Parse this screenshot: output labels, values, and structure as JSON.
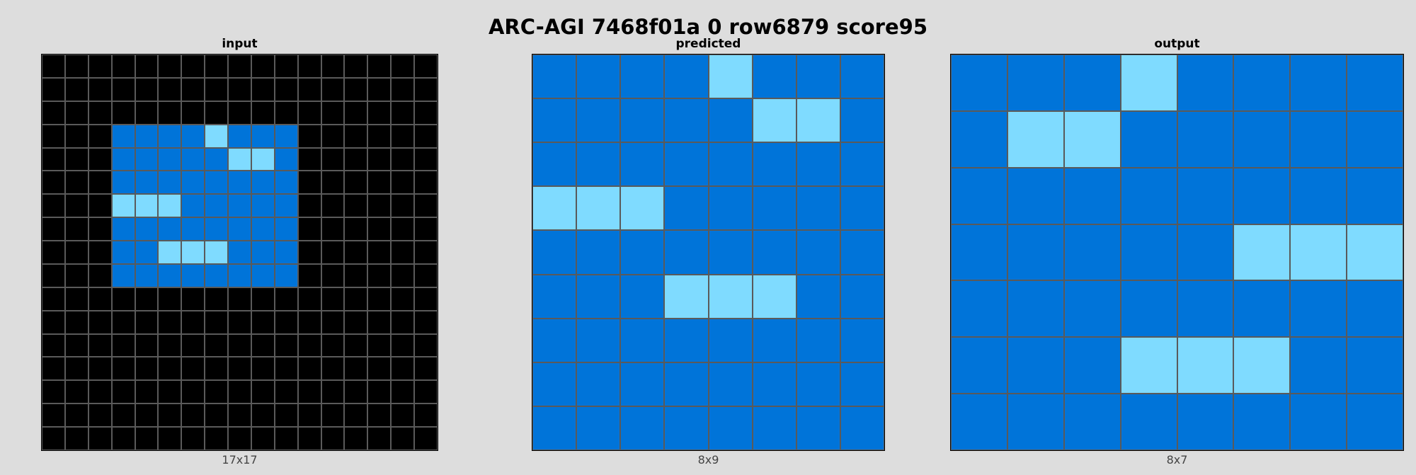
{
  "title": "ARC-AGI 7468f01a 0 row6879 score95",
  "colors": {
    "0": "#000000",
    "1": "#0074D9",
    "8": "#7FDBFF"
  },
  "panels": {
    "input": {
      "label": "input",
      "dims": "17x17",
      "rows": 17,
      "cols": 17,
      "grid": [
        [
          0,
          0,
          0,
          0,
          0,
          0,
          0,
          0,
          0,
          0,
          0,
          0,
          0,
          0,
          0,
          0,
          0
        ],
        [
          0,
          0,
          0,
          0,
          0,
          0,
          0,
          0,
          0,
          0,
          0,
          0,
          0,
          0,
          0,
          0,
          0
        ],
        [
          0,
          0,
          0,
          0,
          0,
          0,
          0,
          0,
          0,
          0,
          0,
          0,
          0,
          0,
          0,
          0,
          0
        ],
        [
          0,
          0,
          0,
          1,
          1,
          1,
          1,
          8,
          1,
          1,
          1,
          0,
          0,
          0,
          0,
          0,
          0
        ],
        [
          0,
          0,
          0,
          1,
          1,
          1,
          1,
          1,
          8,
          8,
          1,
          0,
          0,
          0,
          0,
          0,
          0
        ],
        [
          0,
          0,
          0,
          1,
          1,
          1,
          1,
          1,
          1,
          1,
          1,
          0,
          0,
          0,
          0,
          0,
          0
        ],
        [
          0,
          0,
          0,
          8,
          8,
          8,
          1,
          1,
          1,
          1,
          1,
          0,
          0,
          0,
          0,
          0,
          0
        ],
        [
          0,
          0,
          0,
          1,
          1,
          1,
          1,
          1,
          1,
          1,
          1,
          0,
          0,
          0,
          0,
          0,
          0
        ],
        [
          0,
          0,
          0,
          1,
          1,
          8,
          8,
          8,
          1,
          1,
          1,
          0,
          0,
          0,
          0,
          0,
          0
        ],
        [
          0,
          0,
          0,
          1,
          1,
          1,
          1,
          1,
          1,
          1,
          1,
          0,
          0,
          0,
          0,
          0,
          0
        ],
        [
          0,
          0,
          0,
          0,
          0,
          0,
          0,
          0,
          0,
          0,
          0,
          0,
          0,
          0,
          0,
          0,
          0
        ],
        [
          0,
          0,
          0,
          0,
          0,
          0,
          0,
          0,
          0,
          0,
          0,
          0,
          0,
          0,
          0,
          0,
          0
        ],
        [
          0,
          0,
          0,
          0,
          0,
          0,
          0,
          0,
          0,
          0,
          0,
          0,
          0,
          0,
          0,
          0,
          0
        ],
        [
          0,
          0,
          0,
          0,
          0,
          0,
          0,
          0,
          0,
          0,
          0,
          0,
          0,
          0,
          0,
          0,
          0
        ],
        [
          0,
          0,
          0,
          0,
          0,
          0,
          0,
          0,
          0,
          0,
          0,
          0,
          0,
          0,
          0,
          0,
          0
        ],
        [
          0,
          0,
          0,
          0,
          0,
          0,
          0,
          0,
          0,
          0,
          0,
          0,
          0,
          0,
          0,
          0,
          0
        ],
        [
          0,
          0,
          0,
          0,
          0,
          0,
          0,
          0,
          0,
          0,
          0,
          0,
          0,
          0,
          0,
          0,
          0
        ]
      ]
    },
    "predicted": {
      "label": "predicted",
      "dims": "8x9",
      "rows": 9,
      "cols": 8,
      "grid": [
        [
          1,
          1,
          1,
          1,
          8,
          1,
          1,
          1
        ],
        [
          1,
          1,
          1,
          1,
          1,
          8,
          8,
          1
        ],
        [
          1,
          1,
          1,
          1,
          1,
          1,
          1,
          1
        ],
        [
          8,
          8,
          8,
          1,
          1,
          1,
          1,
          1
        ],
        [
          1,
          1,
          1,
          1,
          1,
          1,
          1,
          1
        ],
        [
          1,
          1,
          1,
          8,
          8,
          8,
          1,
          1
        ],
        [
          1,
          1,
          1,
          1,
          1,
          1,
          1,
          1
        ],
        [
          1,
          1,
          1,
          1,
          1,
          1,
          1,
          1
        ],
        [
          1,
          1,
          1,
          1,
          1,
          1,
          1,
          1
        ]
      ]
    },
    "output": {
      "label": "output",
      "dims": "8x7",
      "rows": 7,
      "cols": 8,
      "grid": [
        [
          1,
          1,
          1,
          8,
          1,
          1,
          1,
          1
        ],
        [
          1,
          8,
          8,
          1,
          1,
          1,
          1,
          1
        ],
        [
          1,
          1,
          1,
          1,
          1,
          1,
          1,
          1
        ],
        [
          1,
          1,
          1,
          1,
          1,
          8,
          8,
          8
        ],
        [
          1,
          1,
          1,
          1,
          1,
          1,
          1,
          1
        ],
        [
          1,
          1,
          1,
          8,
          8,
          8,
          1,
          1
        ],
        [
          1,
          1,
          1,
          1,
          1,
          1,
          1,
          1
        ]
      ]
    }
  }
}
